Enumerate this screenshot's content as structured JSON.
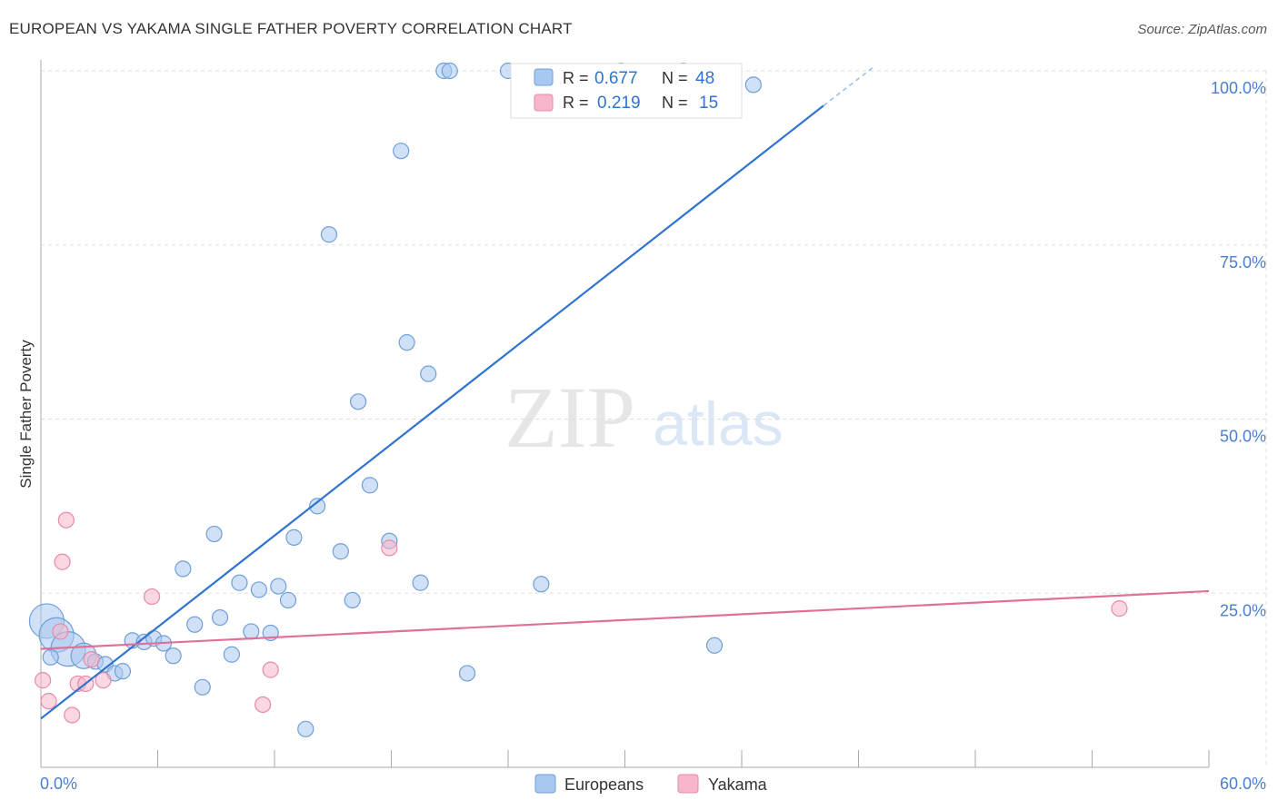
{
  "title": "EUROPEAN VS YAKAMA SINGLE FATHER POVERTY CORRELATION CHART",
  "source": "Source: ZipAtlas.com",
  "watermark": {
    "zip": "ZIP",
    "atlas": "atlas"
  },
  "colors": {
    "europeans_fill": "#a9c8f0",
    "europeans_stroke": "#6f9fd8",
    "europeans_line": "#2f74d0",
    "yakama_fill": "#f7b6cb",
    "yakama_stroke": "#e88aa8",
    "yakama_line": "#e0709a",
    "axis_text": "#4a7fd0",
    "grid": "#dddddd"
  },
  "legend": {
    "rows": [
      {
        "r_label": "R =",
        "r_value": "0.677",
        "n_label": "N =",
        "n_value": "48"
      },
      {
        "r_label": "R =",
        "r_value": "0.219",
        "n_label": "N =",
        "n_value": "15"
      }
    ]
  },
  "bottom_legend": {
    "europeans": "Europeans",
    "yakama": "Yakama"
  },
  "chart_data": {
    "type": "scatter",
    "title": "EUROPEAN VS YAKAMA SINGLE FATHER POVERTY CORRELATION CHART",
    "xlabel": "",
    "ylabel": "Single Father Poverty",
    "xlim": [
      0,
      60
    ],
    "ylim": [
      0,
      100
    ],
    "x_tick_labels": [
      "0.0%",
      "60.0%"
    ],
    "y_tick_labels": [
      "25.0%",
      "50.0%",
      "75.0%",
      "100.0%"
    ],
    "y_ticks": [
      25,
      50,
      75,
      100
    ],
    "series": [
      {
        "name": "Europeans",
        "r": 0.677,
        "n": 48,
        "trend": {
          "x0": 0,
          "y0": 7.0,
          "x1": 40.2,
          "y1": 95.0,
          "dash_to_x": 42.8,
          "dash_to_y": 100.6
        },
        "points": [
          {
            "x": 0.3,
            "y": 21.0,
            "s": 3
          },
          {
            "x": 0.8,
            "y": 19.0,
            "s": 3
          },
          {
            "x": 1.4,
            "y": 17.0,
            "s": 3
          },
          {
            "x": 2.2,
            "y": 16.0,
            "s": 2
          },
          {
            "x": 2.8,
            "y": 15.2,
            "s": 1
          },
          {
            "x": 3.3,
            "y": 14.8,
            "s": 1
          },
          {
            "x": 3.8,
            "y": 13.5,
            "s": 1
          },
          {
            "x": 4.2,
            "y": 13.8,
            "s": 1
          },
          {
            "x": 4.7,
            "y": 18.2,
            "s": 1
          },
          {
            "x": 5.3,
            "y": 18.0,
            "s": 1
          },
          {
            "x": 5.8,
            "y": 18.5,
            "s": 1
          },
          {
            "x": 6.3,
            "y": 17.8,
            "s": 1
          },
          {
            "x": 6.8,
            "y": 16.0,
            "s": 1
          },
          {
            "x": 7.3,
            "y": 28.5,
            "s": 1
          },
          {
            "x": 7.9,
            "y": 20.5,
            "s": 1
          },
          {
            "x": 8.3,
            "y": 11.5,
            "s": 1
          },
          {
            "x": 8.9,
            "y": 33.5,
            "s": 1
          },
          {
            "x": 9.2,
            "y": 21.5,
            "s": 1
          },
          {
            "x": 9.8,
            "y": 16.2,
            "s": 1
          },
          {
            "x": 10.2,
            "y": 26.5,
            "s": 1
          },
          {
            "x": 10.8,
            "y": 19.5,
            "s": 1
          },
          {
            "x": 11.2,
            "y": 25.5,
            "s": 1
          },
          {
            "x": 11.8,
            "y": 19.3,
            "s": 1
          },
          {
            "x": 12.2,
            "y": 26.0,
            "s": 1
          },
          {
            "x": 12.7,
            "y": 24.0,
            "s": 1
          },
          {
            "x": 13.0,
            "y": 33.0,
            "s": 1
          },
          {
            "x": 13.6,
            "y": 5.5,
            "s": 1
          },
          {
            "x": 14.2,
            "y": 37.5,
            "s": 1
          },
          {
            "x": 14.8,
            "y": 76.5,
            "s": 1
          },
          {
            "x": 15.4,
            "y": 31.0,
            "s": 1
          },
          {
            "x": 16.0,
            "y": 24.0,
            "s": 1
          },
          {
            "x": 16.3,
            "y": 52.5,
            "s": 1
          },
          {
            "x": 16.9,
            "y": 40.5,
            "s": 1
          },
          {
            "x": 17.9,
            "y": 32.5,
            "s": 1
          },
          {
            "x": 18.5,
            "y": 88.5,
            "s": 1
          },
          {
            "x": 18.8,
            "y": 61.0,
            "s": 1
          },
          {
            "x": 19.5,
            "y": 26.5,
            "s": 1
          },
          {
            "x": 19.9,
            "y": 56.5,
            "s": 1
          },
          {
            "x": 20.7,
            "y": 100.0,
            "s": 1
          },
          {
            "x": 21.0,
            "y": 100.0,
            "s": 1
          },
          {
            "x": 21.9,
            "y": 13.5,
            "s": 1
          },
          {
            "x": 24.0,
            "y": 100.0,
            "s": 1
          },
          {
            "x": 25.7,
            "y": 26.3,
            "s": 1
          },
          {
            "x": 29.8,
            "y": 100.0,
            "s": 1
          },
          {
            "x": 33.0,
            "y": 100.0,
            "s": 1
          },
          {
            "x": 34.6,
            "y": 17.5,
            "s": 1
          },
          {
            "x": 36.6,
            "y": 98.0,
            "s": 1
          },
          {
            "x": 0.5,
            "y": 15.8,
            "s": 1
          }
        ]
      },
      {
        "name": "Yakama",
        "r": 0.219,
        "n": 15,
        "trend": {
          "x0": 0,
          "y0": 17.0,
          "x1": 60,
          "y1": 25.3
        },
        "points": [
          {
            "x": 0.1,
            "y": 12.5,
            "s": 1
          },
          {
            "x": 0.4,
            "y": 9.5,
            "s": 1
          },
          {
            "x": 1.0,
            "y": 19.5,
            "s": 1
          },
          {
            "x": 1.1,
            "y": 29.5,
            "s": 1
          },
          {
            "x": 1.3,
            "y": 35.5,
            "s": 1
          },
          {
            "x": 1.6,
            "y": 7.5,
            "s": 1
          },
          {
            "x": 1.9,
            "y": 12.0,
            "s": 1
          },
          {
            "x": 2.3,
            "y": 12.0,
            "s": 1
          },
          {
            "x": 2.6,
            "y": 15.5,
            "s": 1
          },
          {
            "x": 3.2,
            "y": 12.5,
            "s": 1
          },
          {
            "x": 5.7,
            "y": 24.5,
            "s": 1
          },
          {
            "x": 11.4,
            "y": 9.0,
            "s": 1
          },
          {
            "x": 11.8,
            "y": 14.0,
            "s": 1
          },
          {
            "x": 17.9,
            "y": 31.5,
            "s": 1
          },
          {
            "x": 55.4,
            "y": 22.8,
            "s": 1
          }
        ]
      }
    ]
  }
}
